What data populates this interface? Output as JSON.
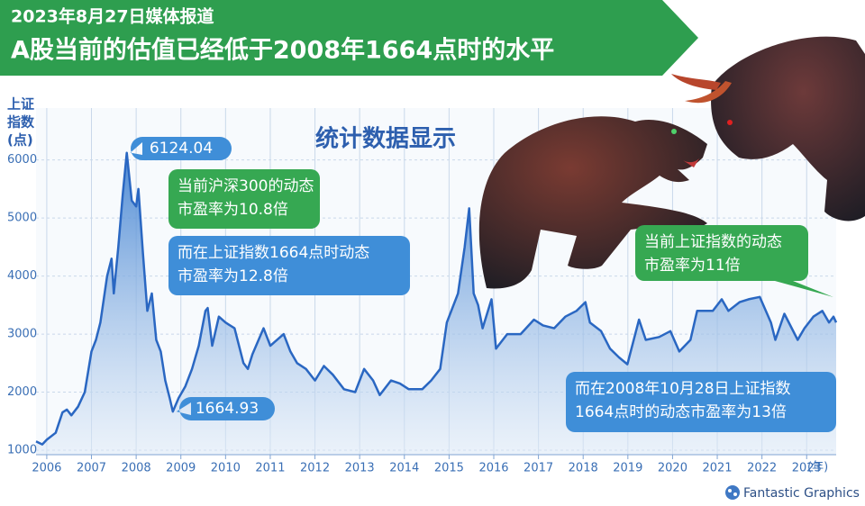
{
  "chart_data": {
    "type": "area",
    "kicker": "2023年8月27日媒体报道",
    "title": "A股当前的估值已经低于2008年1664点时的水平",
    "ylabel": [
      "上证",
      "指数",
      "(点)"
    ],
    "xunit": "(年)",
    "headline": "统计数据显示",
    "x": [
      2005.76,
      2005.9,
      2006.0,
      2006.2,
      2006.35,
      2006.45,
      2006.55,
      2006.7,
      2006.85,
      2007.0,
      2007.1,
      2007.2,
      2007.35,
      2007.45,
      2007.5,
      2007.6,
      2007.7,
      2007.79,
      2007.9,
      2008.0,
      2008.05,
      2008.15,
      2008.25,
      2008.35,
      2008.45,
      2008.55,
      2008.65,
      2008.75,
      2008.82,
      2008.95,
      2009.1,
      2009.25,
      2009.4,
      2009.55,
      2009.6,
      2009.7,
      2009.85,
      2010.0,
      2010.2,
      2010.4,
      2010.5,
      2010.6,
      2010.85,
      2011.0,
      2011.3,
      2011.45,
      2011.6,
      2011.8,
      2012.0,
      2012.2,
      2012.4,
      2012.65,
      2012.9,
      2013.1,
      2013.3,
      2013.45,
      2013.7,
      2013.9,
      2014.1,
      2014.4,
      2014.6,
      2014.8,
      2014.95,
      2015.2,
      2015.35,
      2015.45,
      2015.55,
      2015.65,
      2015.75,
      2015.95,
      2016.05,
      2016.3,
      2016.6,
      2016.9,
      2017.1,
      2017.35,
      2017.6,
      2017.85,
      2018.05,
      2018.15,
      2018.4,
      2018.6,
      2018.8,
      2018.99,
      2019.25,
      2019.4,
      2019.7,
      2019.95,
      2020.15,
      2020.4,
      2020.55,
      2020.9,
      2021.1,
      2021.25,
      2021.5,
      2021.7,
      2021.95,
      2022.2,
      2022.3,
      2022.5,
      2022.8,
      2022.95,
      2023.15,
      2023.35,
      2023.5,
      2023.6,
      2023.66
    ],
    "values": [
      1150,
      1100,
      1180,
      1300,
      1650,
      1700,
      1600,
      1750,
      2000,
      2700,
      2900,
      3200,
      4000,
      4300,
      3700,
      4500,
      5400,
      6124.04,
      5300,
      5200,
      5500,
      4400,
      3400,
      3700,
      2900,
      2700,
      2200,
      1900,
      1664.93,
      1900,
      2100,
      2400,
      2800,
      3400,
      3450,
      2800,
      3300,
      3200,
      3100,
      2500,
      2400,
      2650,
      3100,
      2800,
      3000,
      2700,
      2500,
      2400,
      2200,
      2450,
      2300,
      2050,
      2000,
      2400,
      2200,
      1950,
      2200,
      2150,
      2050,
      2050,
      2200,
      2400,
      3200,
      3700,
      4500,
      5166,
      3700,
      3500,
      3100,
      3600,
      2750,
      3000,
      3000,
      3250,
      3150,
      3100,
      3300,
      3400,
      3550,
      3200,
      3050,
      2750,
      2600,
      2480,
      3250,
      2900,
      2950,
      3050,
      2700,
      2900,
      3400,
      3400,
      3600,
      3400,
      3550,
      3600,
      3640,
      3200,
      2900,
      3350,
      2900,
      3100,
      3300,
      3400,
      3200,
      3300,
      3200
    ],
    "color": "#2a67c2",
    "xlim": [
      2005.76,
      2023.66
    ],
    "xticks": [
      2006,
      2007,
      2008,
      2009,
      2010,
      2011,
      2012,
      2013,
      2014,
      2015,
      2016,
      2017,
      2018,
      2019,
      2020,
      2021,
      2022,
      2023
    ],
    "ylim": [
      1000,
      6600
    ],
    "yticks": [
      1000,
      2000,
      3000,
      4000,
      5000,
      6000
    ],
    "grid": true,
    "annotations": [
      {
        "lines": [
          "当前沪深300的动态",
          "市盈率为10.8倍"
        ],
        "color": "#36a852"
      },
      {
        "lines": [
          "而在上证指数1664点时动态",
          "市盈率为12.8倍"
        ],
        "color": "#3f8ed8"
      },
      {
        "lines": [
          "当前上证指数的动态",
          "市盈率为11倍"
        ],
        "color": "#36a852"
      },
      {
        "lines": [
          "而在2008年10月28日上证指数",
          "1664点时的动态市盈率为13倍"
        ],
        "color": "#3f8ed8"
      }
    ],
    "credit": "Fantastic Graphics"
  }
}
